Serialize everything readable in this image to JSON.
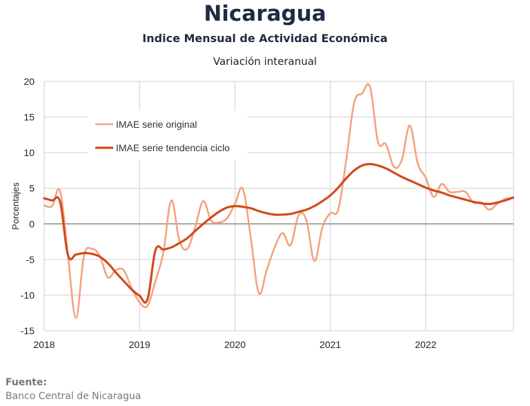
{
  "header": {
    "title": "Nicaragua",
    "subtitle": "Indice Mensual de  Actividad Económica",
    "subtitle2": "Variación interanual"
  },
  "footer": {
    "label": "Fuente:",
    "source": "Banco Central de Nicaragua"
  },
  "colors": {
    "original": "#f5a27e",
    "trend": "#d24a1c",
    "zero_line": "#8a8a8a",
    "grid": "#cfcfcf"
  },
  "chart_data": {
    "type": "line",
    "title": "Nicaragua",
    "subtitle": "Indice Mensual de  Actividad Económica",
    "ylabel": "Porcentajes",
    "xlabel": "",
    "ylim": [
      -15,
      20
    ],
    "yticks": [
      -15,
      -10,
      -5,
      0,
      5,
      10,
      15,
      20
    ],
    "xlim": [
      2018,
      2022.92
    ],
    "xticks": [
      2018,
      2019,
      2020,
      2021,
      2022
    ],
    "grid": true,
    "legend": "top-left",
    "series": [
      {
        "name": "IMAE serie original",
        "x": [
          2018.0,
          2018.083,
          2018.167,
          2018.25,
          2018.333,
          2018.417,
          2018.5,
          2018.583,
          2018.667,
          2018.75,
          2018.833,
          2018.917,
          2019.0,
          2019.083,
          2019.167,
          2019.25,
          2019.333,
          2019.417,
          2019.5,
          2019.583,
          2019.667,
          2019.75,
          2019.833,
          2019.917,
          2020.0,
          2020.083,
          2020.167,
          2020.25,
          2020.333,
          2020.417,
          2020.5,
          2020.583,
          2020.667,
          2020.75,
          2020.833,
          2020.917,
          2021.0,
          2021.083,
          2021.167,
          2021.25,
          2021.333,
          2021.417,
          2021.5,
          2021.583,
          2021.667,
          2021.75,
          2021.833,
          2021.917,
          2022.0,
          2022.083,
          2022.167,
          2022.25,
          2022.333,
          2022.417,
          2022.5,
          2022.583,
          2022.667,
          2022.75,
          2022.833,
          2022.917
        ],
        "values": [
          2.6,
          2.5,
          4.6,
          -4.5,
          -13.2,
          -4.5,
          -3.5,
          -4.5,
          -7.5,
          -6.5,
          -6.5,
          -9.0,
          -11.0,
          -11.5,
          -8.0,
          -4.0,
          3.3,
          -2.3,
          -3.5,
          -0.5,
          3.2,
          0.5,
          0.2,
          0.8,
          2.8,
          4.9,
          -2.0,
          -9.7,
          -6.5,
          -3.3,
          -1.3,
          -3.0,
          1.2,
          0.5,
          -5.2,
          -0.5,
          1.5,
          2.0,
          9.0,
          17.0,
          18.3,
          19.2,
          11.5,
          11.2,
          8.0,
          9.0,
          13.8,
          8.5,
          6.5,
          3.8,
          5.6,
          4.5,
          4.5,
          4.5,
          3.0,
          3.0,
          2.0,
          2.8,
          3.5,
          3.6
        ]
      },
      {
        "name": "IMAE serie  tendencia ciclo",
        "x": [
          2018.0,
          2018.083,
          2018.167,
          2018.25,
          2018.333,
          2018.417,
          2018.5,
          2018.583,
          2018.667,
          2018.75,
          2018.833,
          2018.917,
          2019.0,
          2019.083,
          2019.167,
          2019.25,
          2019.333,
          2019.417,
          2019.5,
          2019.583,
          2019.667,
          2019.75,
          2019.833,
          2019.917,
          2020.0,
          2020.083,
          2020.167,
          2020.25,
          2020.333,
          2020.417,
          2020.5,
          2020.583,
          2020.667,
          2020.75,
          2020.833,
          2020.917,
          2021.0,
          2021.083,
          2021.167,
          2021.25,
          2021.333,
          2021.417,
          2021.5,
          2021.583,
          2021.667,
          2021.75,
          2021.833,
          2021.917,
          2022.0,
          2022.083,
          2022.167,
          2022.25,
          2022.333,
          2022.417,
          2022.5,
          2022.583,
          2022.667,
          2022.75,
          2022.833,
          2022.917
        ],
        "values": [
          3.6,
          3.3,
          3.1,
          -4.4,
          -4.3,
          -4.1,
          -4.2,
          -4.6,
          -5.5,
          -6.8,
          -8.0,
          -9.2,
          -10.1,
          -10.6,
          -3.7,
          -3.6,
          -3.3,
          -2.7,
          -2.0,
          -1.0,
          0.0,
          0.9,
          1.7,
          2.3,
          2.5,
          2.4,
          2.2,
          1.8,
          1.5,
          1.3,
          1.3,
          1.4,
          1.7,
          2.0,
          2.5,
          3.2,
          4.0,
          5.1,
          6.4,
          7.5,
          8.2,
          8.4,
          8.2,
          7.8,
          7.2,
          6.6,
          6.1,
          5.6,
          5.1,
          4.7,
          4.4,
          4.0,
          3.7,
          3.4,
          3.1,
          2.9,
          2.8,
          3.0,
          3.3,
          3.7
        ]
      }
    ]
  }
}
